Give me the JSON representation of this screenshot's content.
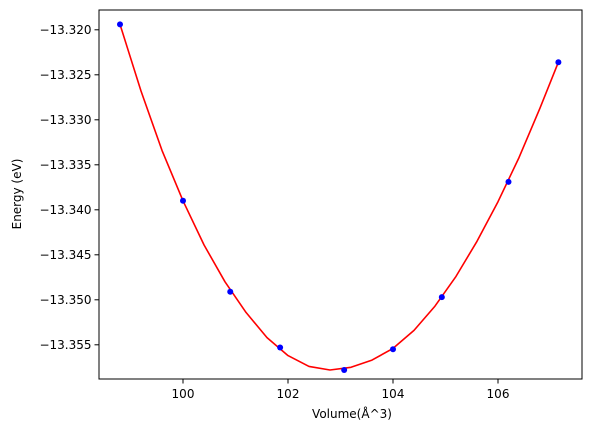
{
  "chart_data": {
    "type": "scatter",
    "xlabel": "Volume(Å^3)",
    "ylabel": "Energy (eV)",
    "xlim": [
      98.4,
      107.6
    ],
    "ylim": [
      -13.3588,
      -13.3178
    ],
    "xticks": [
      100,
      102,
      104,
      106
    ],
    "xtick_labels": [
      "100",
      "102",
      "104",
      "106"
    ],
    "yticks": [
      -13.355,
      -13.35,
      -13.345,
      -13.34,
      -13.335,
      -13.33,
      -13.325,
      -13.32
    ],
    "ytick_labels": [
      "−13.355",
      "−13.350",
      "−13.345",
      "−13.340",
      "−13.335",
      "−13.330",
      "−13.325",
      "−13.320"
    ],
    "grid": false,
    "points": {
      "color": "#0000ff",
      "x": [
        98.8,
        100.0,
        100.9,
        101.85,
        103.07,
        104.0,
        104.93,
        106.2,
        107.15
      ],
      "y": [
        -13.3194,
        -13.339,
        -13.3491,
        -13.3553,
        -13.3578,
        -13.3555,
        -13.3497,
        -13.3369,
        -13.3236
      ]
    },
    "fit_curve": {
      "color": "#ff0000",
      "x": [
        98.8,
        99.2,
        99.6,
        100.0,
        100.4,
        100.8,
        101.2,
        101.6,
        102.0,
        102.4,
        102.8,
        103.2,
        103.6,
        104.0,
        104.4,
        104.8,
        105.2,
        105.6,
        106.0,
        106.4,
        106.8,
        107.15
      ],
      "y": [
        -13.3194,
        -13.3268,
        -13.3334,
        -13.339,
        -13.3439,
        -13.348,
        -13.3514,
        -13.3542,
        -13.3562,
        -13.3574,
        -13.3578,
        -13.3575,
        -13.3567,
        -13.3554,
        -13.3534,
        -13.3507,
        -13.3474,
        -13.3435,
        -13.3391,
        -13.3342,
        -13.3287,
        -13.3236
      ]
    }
  }
}
